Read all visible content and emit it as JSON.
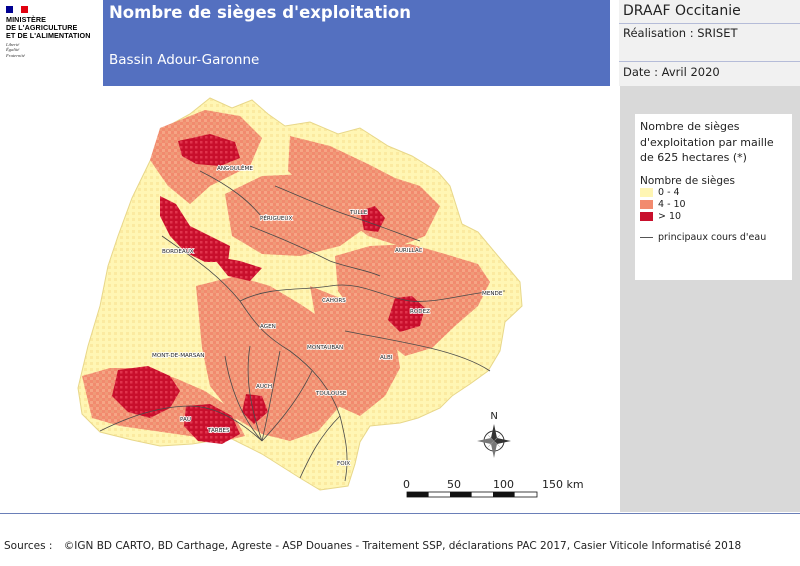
{
  "header": {
    "flag_colors": [
      "#000091",
      "#ffffff",
      "#e1000f"
    ],
    "ministry_lines": [
      "MINISTÈRE",
      "DE L'AGRICULTURE",
      "ET DE L'ALIMENTATION"
    ],
    "motto_lines": [
      "Liberté",
      "Égalité",
      "Fraternité"
    ],
    "title": "Nombre de sièges d'exploitation",
    "subtitle": "Bassin Adour-Garonne",
    "banner_color": "#5470c0"
  },
  "info": {
    "organization": "DRAAF Occitanie",
    "realisation": "Réalisation : SRISET",
    "date": "Date : Avril 2020"
  },
  "legend": {
    "title_lines": [
      "Nombre de sièges",
      "d'exploitation par maille",
      "de 625 hectares (*)"
    ],
    "subtitle": "Nombre de sièges",
    "classes": [
      {
        "label": "0 - 4",
        "color": "#fff6b4"
      },
      {
        "label": "4 - 10",
        "color": "#f28a6e"
      },
      {
        "label": "> 10",
        "color": "#c80f2c"
      }
    ],
    "river_label": "principaux cours d'eau"
  },
  "map": {
    "cities": [
      "ANGOULÊME",
      "PÉRIGUEUX",
      "TULLE",
      "AURILLAC",
      "BORDEAUX",
      "MENDE",
      "CAHORS",
      "RODEZ",
      "AGEN",
      "MONTAUBAN",
      "MONT-DE-MARSAN",
      "ALBI",
      "AUCH",
      "TOULOUSE",
      "PAU",
      "TARBES",
      "FOIX"
    ],
    "north_label": "N",
    "scale_labels": [
      "0",
      "50",
      "100",
      "150 km"
    ]
  },
  "footer": {
    "sources_label": "Sources :",
    "sources_text": "©IGN BD CARTO, BD Carthage, Agreste - ASP Douanes - Traitement SSP, déclarations PAC 2017, Casier Viticole Informatisé 2018"
  }
}
